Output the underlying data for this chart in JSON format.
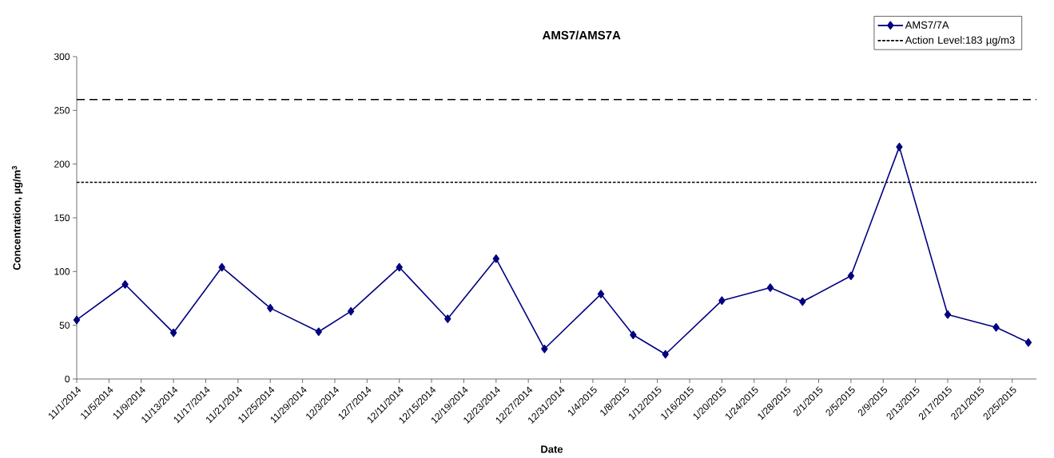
{
  "chart_data": {
    "type": "line",
    "title": "AMS7/AMS7A",
    "xlabel": "Date",
    "ylabel": "Concentration, µg/m$^{3}$",
    "x": [
      "2014-11-01",
      "2014-11-07",
      "2014-11-13",
      "2014-11-19",
      "2014-11-25",
      "2014-12-01",
      "2014-12-05",
      "2014-12-11",
      "2014-12-17",
      "2014-12-23",
      "2014-12-29",
      "2015-01-05",
      "2015-01-09",
      "2015-01-13",
      "2015-01-20",
      "2015-01-26",
      "2015-01-30",
      "2015-02-05",
      "2015-02-11",
      "2015-02-17",
      "2015-02-23",
      "2015-02-27"
    ],
    "series": [
      {
        "name": "AMS7/7A",
        "color": "#000080",
        "values": [
          55,
          88,
          43,
          104,
          66,
          44,
          63,
          104,
          56,
          112,
          28,
          79,
          41,
          23,
          73,
          85,
          72,
          96,
          216,
          60,
          48,
          34
        ]
      }
    ],
    "xlim": [
      "2014-11-01",
      "2015-02-28"
    ],
    "xticks": [
      {
        "value": "2014-11-01",
        "label": "11/1/2014"
      },
      {
        "value": "2014-11-05",
        "label": "11/5/2014"
      },
      {
        "value": "2014-11-09",
        "label": "11/9/2014"
      },
      {
        "value": "2014-11-13",
        "label": "11/13/2014"
      },
      {
        "value": "2014-11-17",
        "label": "11/17/2014"
      },
      {
        "value": "2014-11-21",
        "label": "11/21/2014"
      },
      {
        "value": "2014-11-25",
        "label": "11/25/2014"
      },
      {
        "value": "2014-11-29",
        "label": "11/29/2014"
      },
      {
        "value": "2014-12-03",
        "label": "12/3/2014"
      },
      {
        "value": "2014-12-07",
        "label": "12/7/2014"
      },
      {
        "value": "2014-12-11",
        "label": "12/11/2014"
      },
      {
        "value": "2014-12-15",
        "label": "12/15/2014"
      },
      {
        "value": "2014-12-19",
        "label": "12/19/2014"
      },
      {
        "value": "2014-12-23",
        "label": "12/23/2014"
      },
      {
        "value": "2014-12-27",
        "label": "12/27/2014"
      },
      {
        "value": "2014-12-31",
        "label": "12/31/2014"
      },
      {
        "value": "2015-01-04",
        "label": "1/4/2015"
      },
      {
        "value": "2015-01-08",
        "label": "1/8/2015"
      },
      {
        "value": "2015-01-12",
        "label": "1/12/2015"
      },
      {
        "value": "2015-01-16",
        "label": "1/16/2015"
      },
      {
        "value": "2015-01-20",
        "label": "1/20/2015"
      },
      {
        "value": "2015-01-24",
        "label": "1/24/2015"
      },
      {
        "value": "2015-01-28",
        "label": "1/28/2015"
      },
      {
        "value": "2015-02-01",
        "label": "2/1/2015"
      },
      {
        "value": "2015-02-05",
        "label": "2/5/2015"
      },
      {
        "value": "2015-02-09",
        "label": "2/9/2015"
      },
      {
        "value": "2015-02-13",
        "label": "2/13/2015"
      },
      {
        "value": "2015-02-17",
        "label": "2/17/2015"
      },
      {
        "value": "2015-02-21",
        "label": "2/21/2015"
      },
      {
        "value": "2015-02-25",
        "label": "2/25/2015"
      }
    ],
    "ylim": [
      0,
      300
    ],
    "yticks": [
      0,
      50,
      100,
      150,
      200,
      250,
      300
    ],
    "ref_lines": [
      {
        "axis": "y",
        "value": 260,
        "color": "#000000",
        "line_style": "dashed"
      },
      {
        "axis": "y",
        "value": 183,
        "label": "Action Level:183 µg/m3",
        "color": "#000000",
        "line_style": "dotted"
      }
    ],
    "marker": "diamond",
    "line_style": "solid",
    "grid": false,
    "legend": "top right"
  }
}
